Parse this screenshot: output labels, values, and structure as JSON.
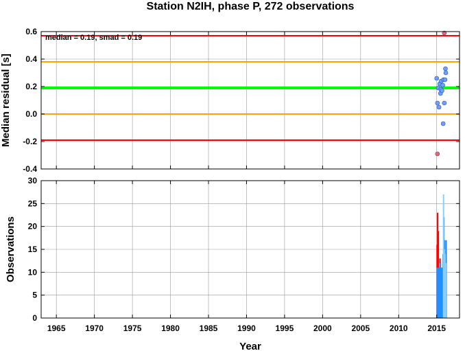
{
  "chart_data": [
    {
      "type": "scatter",
      "title": "Station N2IH, phase P, 272 observations",
      "annotation": "median = 0.19, smad = 0.19",
      "ylabel": "Median residual [s]",
      "xlim": [
        1963,
        2018
      ],
      "ylim": [
        -0.4,
        0.6
      ],
      "yticks": [
        "-0.4",
        "-0.2",
        "0.0",
        "0.2",
        "0.4",
        "0.6"
      ],
      "grid": true,
      "reference_lines": [
        {
          "y": 0.57,
          "color": "#ff0000"
        },
        {
          "y": 0.38,
          "color": "#ffa500"
        },
        {
          "y": 0.19,
          "color": "#00ff00"
        },
        {
          "y": 0.0,
          "color": "#ffa500"
        },
        {
          "y": -0.19,
          "color": "#ff0000"
        }
      ],
      "series": [
        {
          "color": "#6ea0ff",
          "points": [
            {
              "x": 2015.0,
              "y": 0.26
            },
            {
              "x": 2015.1,
              "y": 0.08
            },
            {
              "x": 2015.2,
              "y": 0.19
            },
            {
              "x": 2015.3,
              "y": 0.05
            },
            {
              "x": 2015.4,
              "y": 0.22
            },
            {
              "x": 2015.5,
              "y": 0.15
            },
            {
              "x": 2015.55,
              "y": 0.18
            },
            {
              "x": 2015.6,
              "y": 0.24
            },
            {
              "x": 2015.7,
              "y": 0.17
            },
            {
              "x": 2015.8,
              "y": 0.21
            },
            {
              "x": 2015.85,
              "y": -0.07
            },
            {
              "x": 2015.9,
              "y": 0.25
            },
            {
              "x": 2016.0,
              "y": 0.08
            },
            {
              "x": 2016.1,
              "y": 0.25
            },
            {
              "x": 2016.15,
              "y": 0.33
            },
            {
              "x": 2016.2,
              "y": 0.3
            }
          ]
        },
        {
          "color": "#ff6060",
          "points": [
            {
              "x": 2015.1,
              "y": -0.29
            },
            {
              "x": 2016.0,
              "y": 0.59
            }
          ]
        }
      ]
    },
    {
      "type": "bar",
      "xlabel": "Year",
      "ylabel": "Observations",
      "xlim": [
        1963,
        2018
      ],
      "ylim": [
        0,
        30
      ],
      "xticks": [
        "1965",
        "1970",
        "1975",
        "1980",
        "1985",
        "1990",
        "1995",
        "2000",
        "2005",
        "2010",
        "2015"
      ],
      "yticks": [
        "0",
        "5",
        "10",
        "15",
        "20",
        "25",
        "30"
      ],
      "grid": true,
      "series": [
        {
          "color": "#ff0000",
          "bars": [
            {
              "x": 2015.05,
              "value": 16
            },
            {
              "x": 2015.12,
              "value": 23
            },
            {
              "x": 2015.22,
              "value": 19
            },
            {
              "x": 2015.32,
              "value": 11
            },
            {
              "x": 2015.45,
              "value": 13
            },
            {
              "x": 2015.58,
              "value": 11
            },
            {
              "x": 2015.7,
              "value": 11
            }
          ]
        },
        {
          "color": "#1e90ff",
          "bars": [
            {
              "x": 2015.08,
              "value": 11
            },
            {
              "x": 2015.18,
              "value": 11
            },
            {
              "x": 2015.28,
              "value": 11
            },
            {
              "x": 2015.38,
              "value": 11
            },
            {
              "x": 2015.5,
              "value": 12
            },
            {
              "x": 2015.62,
              "value": 11
            },
            {
              "x": 2015.75,
              "value": 11
            },
            {
              "x": 2015.85,
              "value": 14
            },
            {
              "x": 2015.95,
              "value": 22
            },
            {
              "x": 2016.05,
              "value": 17
            },
            {
              "x": 2016.15,
              "value": 11
            },
            {
              "x": 2016.25,
              "value": 17
            }
          ]
        },
        {
          "color": "#87cefa",
          "bars": [
            {
              "x": 2015.9,
              "value": 27
            },
            {
              "x": 2016.0,
              "value": 15
            },
            {
              "x": 2016.1,
              "value": 14
            },
            {
              "x": 2016.2,
              "value": 12
            }
          ]
        }
      ]
    }
  ]
}
